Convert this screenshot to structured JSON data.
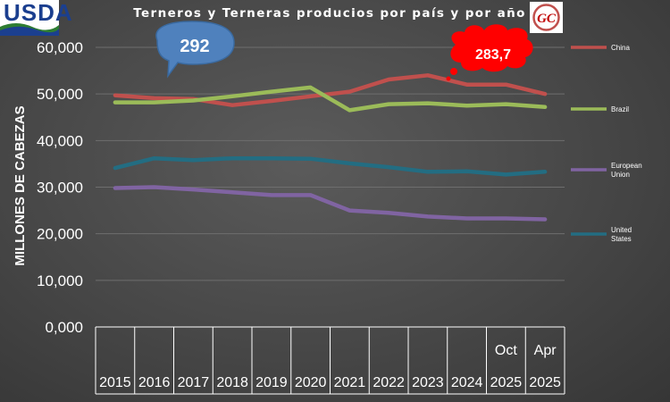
{
  "logo": {
    "text": "USDA"
  },
  "badge": {
    "text": "GC"
  },
  "chart_data": {
    "type": "line",
    "title": "Terneros y Terneras producios por país y por año",
    "ylabel": "MILLONES DE CABEZAS",
    "ylim": [
      0,
      60000
    ],
    "yticks": [
      "0,000",
      "10,000",
      "20,000",
      "30,000",
      "40,000",
      "50,000",
      "60,000"
    ],
    "grid": true,
    "legend_position": "right",
    "x_upper_labels": [
      "",
      "",
      "",
      "",
      "",
      "",
      "",
      "",
      "",
      "",
      "Oct",
      "Apr"
    ],
    "x": [
      "2015",
      "2016",
      "2017",
      "2018",
      "2019",
      "2020",
      "2021",
      "2022",
      "2023",
      "2024",
      "2025",
      "2025"
    ],
    "series": [
      {
        "name": "China",
        "color": "#c0504d",
        "values": [
          49700,
          49100,
          48900,
          47600,
          48500,
          49500,
          50500,
          53100,
          54000,
          52000,
          52000,
          50000
        ]
      },
      {
        "name": "Brazil",
        "color": "#9bbb59",
        "values": [
          48200,
          48200,
          48600,
          49500,
          50500,
          51400,
          46500,
          47800,
          48000,
          47500,
          47800,
          47200
        ]
      },
      {
        "name": "European Union",
        "color": "#8064a2",
        "values": [
          29800,
          30000,
          29500,
          28900,
          28300,
          28300,
          25000,
          24500,
          23700,
          23300,
          23300,
          23100
        ]
      },
      {
        "name": "United States",
        "color": "#236d82",
        "values": [
          34100,
          36200,
          35800,
          36200,
          36200,
          36100,
          35100,
          34300,
          33300,
          33400,
          32700,
          33300
        ]
      }
    ],
    "annotations": [
      {
        "text": "292",
        "color": "#4f81bd"
      },
      {
        "text": "283,7",
        "color": "#ff0000"
      }
    ]
  }
}
